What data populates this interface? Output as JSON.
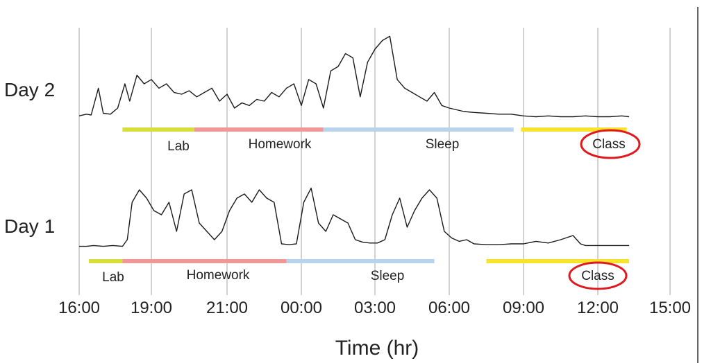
{
  "chart_data": {
    "type": "line",
    "title": "",
    "xlabel": "Time (hr)",
    "ylabel": "",
    "x_ticks": [
      "16:00",
      "19:00",
      "21:00",
      "00:00",
      "03:00",
      "06:00",
      "09:00",
      "12:00",
      "15:00"
    ],
    "grid": "vertical",
    "series": [
      {
        "name": "Day 2",
        "points": [
          [
            0.0,
            0.03
          ],
          [
            0.3,
            0.05
          ],
          [
            0.5,
            0.04
          ],
          [
            0.8,
            0.35
          ],
          [
            1.0,
            0.06
          ],
          [
            1.3,
            0.05
          ],
          [
            1.6,
            0.12
          ],
          [
            1.9,
            0.4
          ],
          [
            2.1,
            0.2
          ],
          [
            2.4,
            0.5
          ],
          [
            2.7,
            0.4
          ],
          [
            3.0,
            0.45
          ],
          [
            3.3,
            0.35
          ],
          [
            3.6,
            0.4
          ],
          [
            3.9,
            0.3
          ],
          [
            4.2,
            0.28
          ],
          [
            4.5,
            0.32
          ],
          [
            4.8,
            0.25
          ],
          [
            5.1,
            0.3
          ],
          [
            5.4,
            0.35
          ],
          [
            5.7,
            0.2
          ],
          [
            6.0,
            0.28
          ],
          [
            6.3,
            0.12
          ],
          [
            6.6,
            0.18
          ],
          [
            6.9,
            0.15
          ],
          [
            7.2,
            0.22
          ],
          [
            7.5,
            0.2
          ],
          [
            7.8,
            0.3
          ],
          [
            8.1,
            0.25
          ],
          [
            8.4,
            0.35
          ],
          [
            8.7,
            0.4
          ],
          [
            9.0,
            0.15
          ],
          [
            9.3,
            0.45
          ],
          [
            9.6,
            0.4
          ],
          [
            9.9,
            0.12
          ],
          [
            10.2,
            0.55
          ],
          [
            10.5,
            0.6
          ],
          [
            10.8,
            0.75
          ],
          [
            11.1,
            0.7
          ],
          [
            11.4,
            0.25
          ],
          [
            11.7,
            0.65
          ],
          [
            12.0,
            0.8
          ],
          [
            12.3,
            0.9
          ],
          [
            12.6,
            0.95
          ],
          [
            12.9,
            0.45
          ],
          [
            13.2,
            0.35
          ],
          [
            13.5,
            0.3
          ],
          [
            13.8,
            0.25
          ],
          [
            14.1,
            0.2
          ],
          [
            14.4,
            0.3
          ],
          [
            14.7,
            0.15
          ],
          [
            15.0,
            0.12
          ],
          [
            15.3,
            0.1
          ],
          [
            15.6,
            0.08
          ],
          [
            16.0,
            0.07
          ],
          [
            16.5,
            0.06
          ],
          [
            17.0,
            0.05
          ],
          [
            17.5,
            0.05
          ],
          [
            18.0,
            0.03
          ],
          [
            18.5,
            0.02
          ],
          [
            19.0,
            0.03
          ],
          [
            19.5,
            0.02
          ],
          [
            20.0,
            0.02
          ],
          [
            20.5,
            0.03
          ],
          [
            21.0,
            0.02
          ],
          [
            21.5,
            0.02
          ],
          [
            22.0,
            0.03
          ],
          [
            22.3,
            0.02
          ]
        ]
      },
      {
        "name": "Day 1",
        "points": [
          [
            0.0,
            0.02
          ],
          [
            0.3,
            0.02
          ],
          [
            0.6,
            0.03
          ],
          [
            1.0,
            0.02
          ],
          [
            1.4,
            0.03
          ],
          [
            1.8,
            0.02
          ],
          [
            2.0,
            0.1
          ],
          [
            2.2,
            0.55
          ],
          [
            2.5,
            0.7
          ],
          [
            2.8,
            0.6
          ],
          [
            3.1,
            0.45
          ],
          [
            3.4,
            0.4
          ],
          [
            3.7,
            0.55
          ],
          [
            4.0,
            0.2
          ],
          [
            4.3,
            0.65
          ],
          [
            4.6,
            0.7
          ],
          [
            4.9,
            0.3
          ],
          [
            5.2,
            0.2
          ],
          [
            5.5,
            0.1
          ],
          [
            5.8,
            0.2
          ],
          [
            6.1,
            0.45
          ],
          [
            6.4,
            0.6
          ],
          [
            6.7,
            0.65
          ],
          [
            7.0,
            0.55
          ],
          [
            7.3,
            0.7
          ],
          [
            7.6,
            0.6
          ],
          [
            7.9,
            0.55
          ],
          [
            8.2,
            0.05
          ],
          [
            8.5,
            0.04
          ],
          [
            8.8,
            0.05
          ],
          [
            9.1,
            0.55
          ],
          [
            9.4,
            0.72
          ],
          [
            9.7,
            0.3
          ],
          [
            10.0,
            0.2
          ],
          [
            10.3,
            0.4
          ],
          [
            10.6,
            0.35
          ],
          [
            10.9,
            0.3
          ],
          [
            11.2,
            0.1
          ],
          [
            11.5,
            0.07
          ],
          [
            11.8,
            0.06
          ],
          [
            12.1,
            0.06
          ],
          [
            12.4,
            0.1
          ],
          [
            12.7,
            0.4
          ],
          [
            13.0,
            0.6
          ],
          [
            13.3,
            0.25
          ],
          [
            13.6,
            0.45
          ],
          [
            13.9,
            0.6
          ],
          [
            14.2,
            0.7
          ],
          [
            14.5,
            0.6
          ],
          [
            14.8,
            0.2
          ],
          [
            15.1,
            0.12
          ],
          [
            15.4,
            0.08
          ],
          [
            15.7,
            0.1
          ],
          [
            16.0,
            0.05
          ],
          [
            16.5,
            0.04
          ],
          [
            17.0,
            0.04
          ],
          [
            17.5,
            0.05
          ],
          [
            18.0,
            0.05
          ],
          [
            18.5,
            0.08
          ],
          [
            19.0,
            0.06
          ],
          [
            19.5,
            0.1
          ],
          [
            20.0,
            0.15
          ],
          [
            20.3,
            0.05
          ],
          [
            20.5,
            0.03
          ],
          [
            21.0,
            0.03
          ],
          [
            22.0,
            0.03
          ],
          [
            22.3,
            0.03
          ]
        ]
      }
    ],
    "activity_bands": [
      {
        "day": "Day 2",
        "segments": [
          {
            "label": "Lab",
            "start": 1.8,
            "end": 4.7,
            "color": "#d6df3a"
          },
          {
            "label": "Homework",
            "start": 4.7,
            "end": 9.9,
            "color": "#f19797"
          },
          {
            "label": "Sleep",
            "start": 9.9,
            "end": 17.6,
            "color": "#b8d3ee"
          },
          {
            "label": "Class",
            "start": 17.9,
            "end": 22.2,
            "color": "#f6e32c"
          }
        ]
      },
      {
        "day": "Day 1",
        "segments": [
          {
            "label": "Lab",
            "start": 0.4,
            "end": 1.8,
            "color": "#d6df3a"
          },
          {
            "label": "Homework",
            "start": 1.8,
            "end": 8.4,
            "color": "#f19797"
          },
          {
            "label": "Sleep",
            "start": 8.4,
            "end": 14.4,
            "color": "#b8d3ee"
          },
          {
            "label": "Class",
            "start": 16.5,
            "end": 22.3,
            "color": "#f6e32c"
          }
        ]
      }
    ],
    "annotations": [
      "Class (circled, Day 2)",
      "Class (circled, Day 1)"
    ]
  },
  "labels": {
    "day2": "Day 2",
    "day1": "Day 1",
    "xaxis": "Time (hr)",
    "day2_bands": [
      "Lab",
      "Homework",
      "Sleep",
      "Class"
    ],
    "day1_bands": [
      "Lab",
      "Homework",
      "Sleep",
      "Class"
    ]
  },
  "colors": {
    "trace": "#1a1a1a",
    "grid": "#b5b5b5",
    "circle": "#e0191e"
  }
}
